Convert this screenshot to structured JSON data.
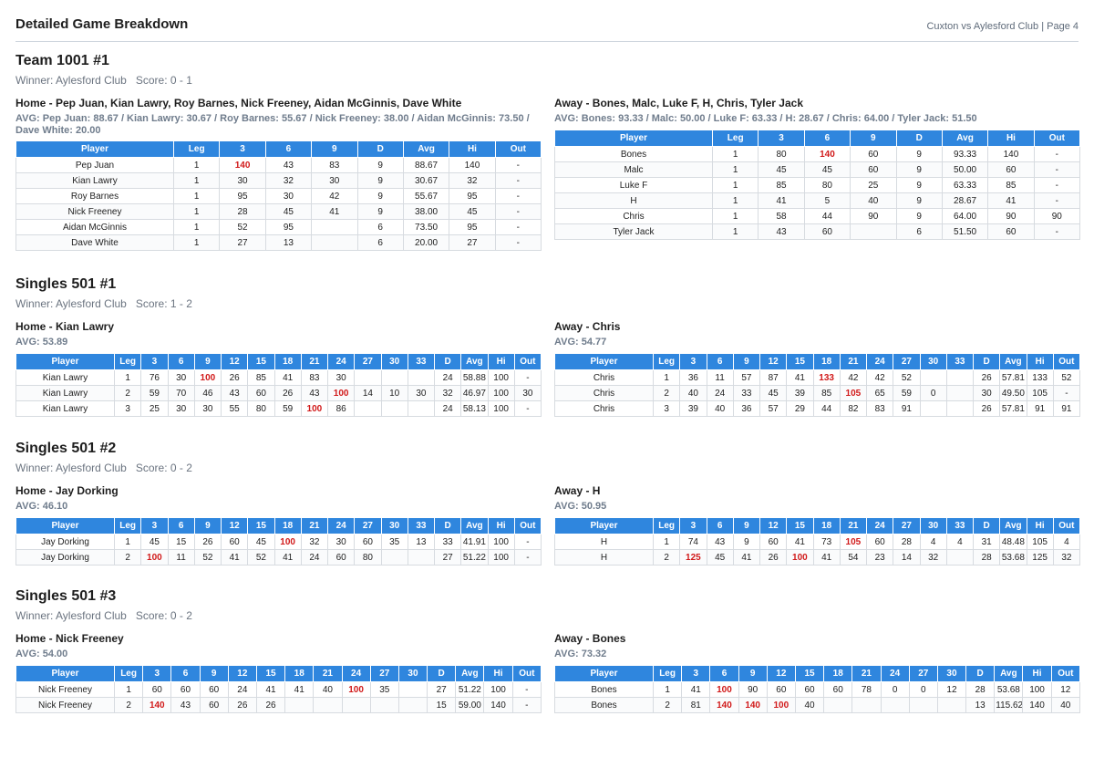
{
  "header": {
    "title": "Detailed Game Breakdown",
    "meta": "Cuxton vs Aylesford Club  |  Page 4"
  },
  "columns": {
    "team": [
      "Player",
      "Leg",
      "3",
      "6",
      "9",
      "D",
      "Avg",
      "Hi",
      "Out"
    ],
    "s1": [
      "Player",
      "Leg",
      "3",
      "6",
      "9",
      "12",
      "15",
      "18",
      "21",
      "24",
      "27",
      "30",
      "33",
      "D",
      "Avg",
      "Hi",
      "Out"
    ],
    "s3": [
      "Player",
      "Leg",
      "3",
      "6",
      "9",
      "12",
      "15",
      "18",
      "21",
      "24",
      "27",
      "30",
      "D",
      "Avg",
      "Hi",
      "Out"
    ]
  },
  "games": [
    {
      "title": "Team 1001 #1",
      "winner": "Winner: Aylesford Club",
      "score": "Score: 0 - 1",
      "cols": "team",
      "home": {
        "title": "Home - Pep Juan, Kian Lawry, Roy Barnes, Nick Freeney, Aidan McGinnis, Dave White",
        "avg": "AVG: Pep Juan: 88.67 / Kian Lawry: 30.67 / Roy Barnes: 55.67 / Nick Freeney: 38.00 / Aidan McGinnis: 73.50 / Dave White: 20.00",
        "rows": [
          [
            "Pep Juan",
            "1",
            "140",
            "43",
            "83",
            "9",
            "88.67",
            "140",
            "-"
          ],
          [
            "Kian Lawry",
            "1",
            "30",
            "32",
            "30",
            "9",
            "30.67",
            "32",
            "-"
          ],
          [
            "Roy Barnes",
            "1",
            "95",
            "30",
            "42",
            "9",
            "55.67",
            "95",
            "-"
          ],
          [
            "Nick Freeney",
            "1",
            "28",
            "45",
            "41",
            "9",
            "38.00",
            "45",
            "-"
          ],
          [
            "Aidan McGinnis",
            "1",
            "52",
            "95",
            "",
            "6",
            "73.50",
            "95",
            "-"
          ],
          [
            "Dave White",
            "1",
            "27",
            "13",
            "",
            "6",
            "20.00",
            "27",
            "-"
          ]
        ]
      },
      "away": {
        "title": "Away - Bones, Malc, Luke F, H, Chris, Tyler Jack",
        "avg": "AVG: Bones: 93.33 / Malc: 50.00 / Luke F: 63.33 / H: 28.67 / Chris: 64.00 / Tyler Jack: 51.50",
        "rows": [
          [
            "Bones",
            "1",
            "80",
            "140",
            "60",
            "9",
            "93.33",
            "140",
            "-"
          ],
          [
            "Malc",
            "1",
            "45",
            "45",
            "60",
            "9",
            "50.00",
            "60",
            "-"
          ],
          [
            "Luke F",
            "1",
            "85",
            "80",
            "25",
            "9",
            "63.33",
            "85",
            "-"
          ],
          [
            "H",
            "1",
            "41",
            "5",
            "40",
            "9",
            "28.67",
            "41",
            "-"
          ],
          [
            "Chris",
            "1",
            "58",
            "44",
            "90",
            "9",
            "64.00",
            "90",
            "90"
          ],
          [
            "Tyler Jack",
            "1",
            "43",
            "60",
            "",
            "6",
            "51.50",
            "60",
            "-"
          ]
        ]
      }
    },
    {
      "title": "Singles 501 #1",
      "winner": "Winner: Aylesford Club",
      "score": "Score: 1 - 2",
      "cols": "s1",
      "home": {
        "title": "Home - Kian Lawry",
        "avg": "AVG: 53.89",
        "rows": [
          [
            "Kian Lawry",
            "1",
            "76",
            "30",
            "100",
            "26",
            "85",
            "41",
            "83",
            "30",
            "",
            "",
            "",
            "24",
            "58.88",
            "100",
            "-"
          ],
          [
            "Kian Lawry",
            "2",
            "59",
            "70",
            "46",
            "43",
            "60",
            "26",
            "43",
            "100",
            "14",
            "10",
            "30",
            "32",
            "46.97",
            "100",
            "30"
          ],
          [
            "Kian Lawry",
            "3",
            "25",
            "30",
            "30",
            "55",
            "80",
            "59",
            "100",
            "86",
            "",
            "",
            "",
            "24",
            "58.13",
            "100",
            "-"
          ]
        ]
      },
      "away": {
        "title": "Away - Chris",
        "avg": "AVG: 54.77",
        "rows": [
          [
            "Chris",
            "1",
            "36",
            "11",
            "57",
            "87",
            "41",
            "133",
            "42",
            "42",
            "52",
            "",
            "",
            "26",
            "57.81",
            "133",
            "52"
          ],
          [
            "Chris",
            "2",
            "40",
            "24",
            "33",
            "45",
            "39",
            "85",
            "105",
            "65",
            "59",
            "0",
            "",
            "30",
            "49.50",
            "105",
            "-"
          ],
          [
            "Chris",
            "3",
            "39",
            "40",
            "36",
            "57",
            "29",
            "44",
            "82",
            "83",
            "91",
            "",
            "",
            "26",
            "57.81",
            "91",
            "91"
          ]
        ]
      }
    },
    {
      "title": "Singles 501 #2",
      "winner": "Winner: Aylesford Club",
      "score": "Score: 0 - 2",
      "cols": "s1",
      "home": {
        "title": "Home - Jay Dorking",
        "avg": "AVG: 46.10",
        "rows": [
          [
            "Jay Dorking",
            "1",
            "45",
            "15",
            "26",
            "60",
            "45",
            "100",
            "32",
            "30",
            "60",
            "35",
            "13",
            "33",
            "41.91",
            "100",
            "-"
          ],
          [
            "Jay Dorking",
            "2",
            "100",
            "11",
            "52",
            "41",
            "52",
            "41",
            "24",
            "60",
            "80",
            "",
            "",
            "27",
            "51.22",
            "100",
            "-"
          ]
        ]
      },
      "away": {
        "title": "Away - H",
        "avg": "AVG: 50.95",
        "rows": [
          [
            "H",
            "1",
            "74",
            "43",
            "9",
            "60",
            "41",
            "73",
            "105",
            "60",
            "28",
            "4",
            "4",
            "31",
            "48.48",
            "105",
            "4"
          ],
          [
            "H",
            "2",
            "125",
            "45",
            "41",
            "26",
            "100",
            "41",
            "54",
            "23",
            "14",
            "32",
            "",
            "28",
            "53.68",
            "125",
            "32"
          ]
        ]
      }
    },
    {
      "title": "Singles 501 #3",
      "winner": "Winner: Aylesford Club",
      "score": "Score: 0 - 2",
      "cols": "s3",
      "home": {
        "title": "Home - Nick Freeney",
        "avg": "AVG: 54.00",
        "rows": [
          [
            "Nick Freeney",
            "1",
            "60",
            "60",
            "60",
            "24",
            "41",
            "41",
            "40",
            "100",
            "35",
            "",
            "27",
            "51.22",
            "100",
            "-"
          ],
          [
            "Nick Freeney",
            "2",
            "140",
            "43",
            "60",
            "26",
            "26",
            "",
            "",
            "",
            "",
            "",
            "15",
            "59.00",
            "140",
            "-"
          ]
        ]
      },
      "away": {
        "title": "Away - Bones",
        "avg": "AVG: 73.32",
        "rows": [
          [
            "Bones",
            "1",
            "41",
            "100",
            "90",
            "60",
            "60",
            "60",
            "78",
            "0",
            "0",
            "12",
            "28",
            "53.68",
            "100",
            "12"
          ],
          [
            "Bones",
            "2",
            "81",
            "140",
            "140",
            "100",
            "40",
            "",
            "",
            "",
            "",
            "",
            "13",
            "115.62",
            "140",
            "40"
          ]
        ]
      }
    }
  ],
  "styles": {
    "header_blue": "#2f86de",
    "highlight_red": "#d11a1a",
    "avg_gray": "#6f7c8c"
  }
}
